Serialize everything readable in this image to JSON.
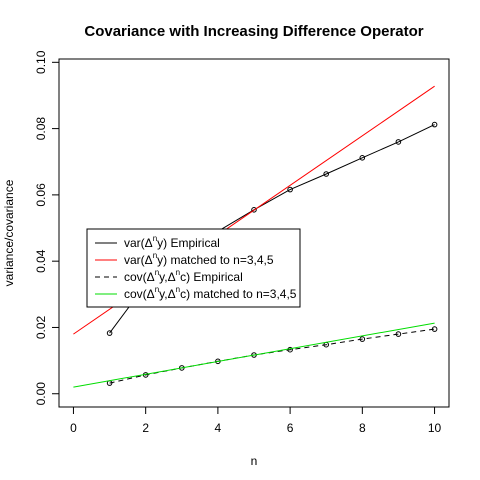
{
  "chart_data": {
    "type": "line",
    "title": "Covariance with Increasing Difference Operator",
    "xlabel": "n",
    "ylabel": "variance/covariance",
    "xlim": [
      -0.4,
      10.4
    ],
    "ylim": [
      -0.004,
      0.101
    ],
    "x_ticks": [
      0,
      2,
      4,
      6,
      8,
      10
    ],
    "y_ticks": [
      0.0,
      0.02,
      0.04,
      0.06,
      0.08,
      0.1
    ],
    "y_tick_labels": [
      "0.00",
      "0.02",
      "0.04",
      "0.06",
      "0.08",
      "0.10"
    ],
    "grid": false,
    "legend_position": "center-left",
    "series": [
      {
        "name": "var(Δⁿy) Empirical",
        "legend_parts": [
          "var(Δ",
          "n",
          "y) Empirical"
        ],
        "color": "#000000",
        "dash": "solid",
        "markers": true,
        "x": [
          1,
          2,
          3,
          4,
          5,
          6,
          7,
          8,
          9,
          10
        ],
        "y": [
          0.0183,
          0.033,
          0.043,
          0.049,
          0.0555,
          0.0616,
          0.0663,
          0.0712,
          0.076,
          0.0812
        ]
      },
      {
        "name": "var(Δⁿy) matched to n=3,4,5",
        "legend_parts": [
          "var(Δ",
          "n",
          "y) matched to n=3,4,5"
        ],
        "color": "#ff0000",
        "dash": "solid",
        "markers": false,
        "x": [
          0,
          10
        ],
        "y": [
          0.018,
          0.0928
        ]
      },
      {
        "name": "cov(Δⁿy,Δⁿc) Empirical",
        "legend_parts": [
          "cov(Δ",
          "n",
          "y,Δ",
          "n",
          "c) Empirical"
        ],
        "color": "#000000",
        "dash": "dashed",
        "markers": true,
        "x": [
          1,
          2,
          3,
          4,
          5,
          6,
          7,
          8,
          9,
          10
        ],
        "y": [
          0.0032,
          0.0057,
          0.0078,
          0.0098,
          0.0117,
          0.0133,
          0.0148,
          0.0165,
          0.018,
          0.0195
        ]
      },
      {
        "name": "cov(Δⁿy,Δⁿc) matched to n=3,4,5",
        "legend_parts": [
          "cov(Δ",
          "n",
          "y,Δ",
          "n",
          "c) matched to n=3,4,5"
        ],
        "color": "#00dd00",
        "dash": "solid",
        "markers": false,
        "x": [
          0,
          10
        ],
        "y": [
          0.002,
          0.0213
        ]
      }
    ]
  }
}
